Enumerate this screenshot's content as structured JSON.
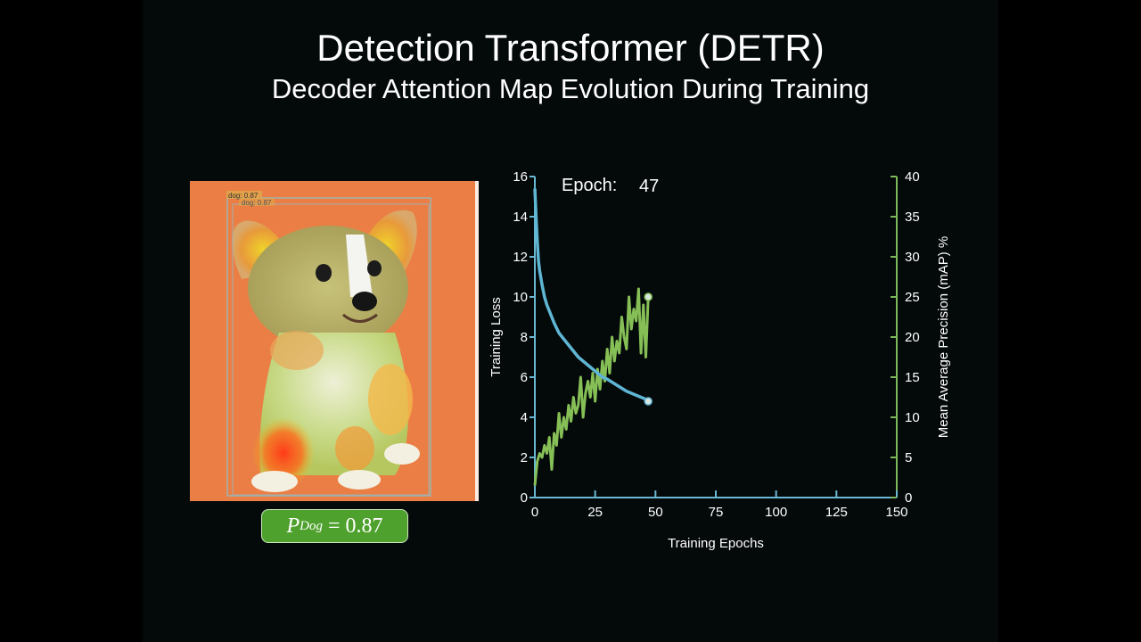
{
  "title": "Detection Transformer (DETR)",
  "subtitle": "Decoder Attention Map Evolution During Training",
  "image": {
    "description_icon": "corgi-puppy-attention-heatmap",
    "box_labels": [
      "dog: 0.87",
      "dog: 0.87"
    ],
    "probability": {
      "symbol": "P",
      "subscript": "Dog",
      "value": "= 0.87"
    }
  },
  "colors": {
    "loss": "#5fb6d4",
    "map": "#86bf56",
    "axis_left": "#6bb8d3",
    "axis_right": "#7fb85a",
    "badge": "#4ea12d"
  },
  "chart_data": {
    "type": "line",
    "epoch_label": "Epoch:",
    "epoch_value": "47",
    "xlabel": "Training Epochs",
    "ylabel": "Training Loss",
    "y2label": "Mean Average Precision (mAP) %",
    "xlim": [
      0,
      150
    ],
    "ylim": [
      0,
      16
    ],
    "y2lim": [
      0,
      40
    ],
    "xticks": [
      0,
      25,
      50,
      75,
      100,
      125,
      150
    ],
    "yticks": [
      0,
      2,
      4,
      6,
      8,
      10,
      12,
      14,
      16
    ],
    "y2ticks": [
      0,
      5,
      10,
      15,
      20,
      25,
      30,
      35,
      40
    ],
    "series": [
      {
        "axis": "left",
        "x": [
          0,
          0.5,
          1,
          1.5,
          2,
          3,
          4,
          5,
          6,
          7,
          8,
          10,
          12,
          14,
          16,
          18,
          20,
          22,
          24,
          26,
          28,
          30,
          32,
          34,
          36,
          38,
          40,
          42,
          44,
          46,
          47
        ],
        "values": [
          15.4,
          14.0,
          12.8,
          11.8,
          11.3,
          10.6,
          10.0,
          9.6,
          9.3,
          9.0,
          8.7,
          8.2,
          7.9,
          7.6,
          7.3,
          7.0,
          6.8,
          6.6,
          6.4,
          6.2,
          6.0,
          5.9,
          5.75,
          5.6,
          5.45,
          5.3,
          5.2,
          5.1,
          5.0,
          4.9,
          4.8
        ]
      },
      {
        "axis": "right",
        "x": [
          0,
          1,
          2,
          3,
          4,
          5,
          6,
          7,
          8,
          9,
          10,
          11,
          12,
          13,
          14,
          15,
          16,
          17,
          18,
          19,
          20,
          21,
          22,
          23,
          24,
          25,
          26,
          27,
          28,
          29,
          30,
          31,
          32,
          33,
          34,
          35,
          36,
          37,
          38,
          39,
          40,
          41,
          42,
          43,
          44,
          45,
          46,
          47
        ],
        "values": [
          1.5,
          4.5,
          5.5,
          5.0,
          6.5,
          5.5,
          7.5,
          3.5,
          8.0,
          6.5,
          10.5,
          7.5,
          10.0,
          8.5,
          11.5,
          9.5,
          12.5,
          10.5,
          11.5,
          15.0,
          10.0,
          13.0,
          14.5,
          12.5,
          15.5,
          12.0,
          16.0,
          13.5,
          17.0,
          14.5,
          18.5,
          15.5,
          20.0,
          17.0,
          19.5,
          18.0,
          22.5,
          20.0,
          18.5,
          25.0,
          21.0,
          23.5,
          22.0,
          26.0,
          18.0,
          24.0,
          17.5,
          25.0
        ]
      }
    ]
  }
}
